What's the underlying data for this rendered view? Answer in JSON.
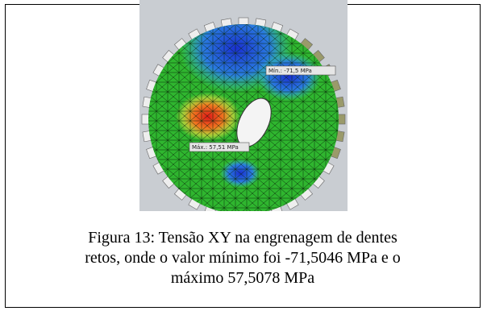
{
  "figure": {
    "image": {
      "min_label": "Mín.: -71,5 MPa",
      "max_label": "Máx.: 57,51 MPa"
    },
    "caption": [
      "Figura 13: Tensão XY na engrenagem de dentes",
      "retos, onde o valor mínimo foi -71,5046 MPa e o",
      "máximo 57,5078 MPa"
    ]
  }
}
